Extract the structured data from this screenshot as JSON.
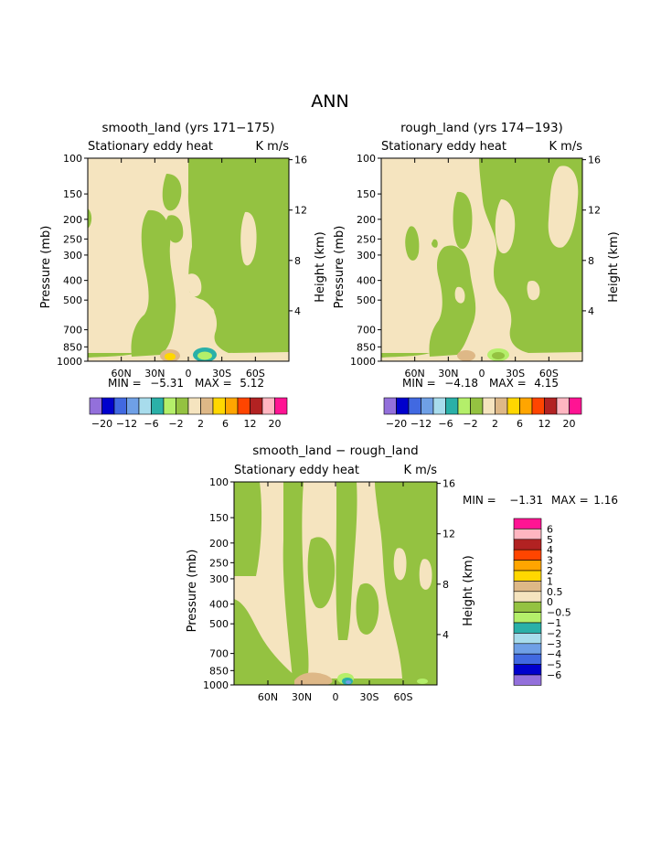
{
  "page_title": "ANN",
  "colors": {
    "purple": "#9370db",
    "darkblue": "#0000cd",
    "blue": "#4169e1",
    "lightblue": "#6fa0e6",
    "paleblue": "#a8dcec",
    "teal": "#2ab0a8",
    "lightgreen": "#b4ef6a",
    "green": "#94c241",
    "cream": "#f5e4bf",
    "tan": "#deb887",
    "yellow": "#ffd700",
    "orange": "#ffa500",
    "redorange": "#ff4500",
    "darkred": "#b22222",
    "pink": "#ffb6c1",
    "magenta": "#ff1493"
  },
  "chart_data": [
    {
      "type": "contour",
      "title": "smooth_land (yrs 171−175)",
      "subtitle": "Stationary eddy heat",
      "units": "K m/s",
      "ylabel": "Pressure (mb)",
      "ylabel_right": "Height (km)",
      "y_ticks": [
        "100",
        "150",
        "200",
        "250",
        "300",
        "400",
        "500",
        "700",
        "850",
        "1000"
      ],
      "y_right_ticks": [
        "16",
        "12",
        "8",
        "4"
      ],
      "x_ticks": [
        "60N",
        "30N",
        "0",
        "30S",
        "60S"
      ],
      "min_label": "MIN =",
      "min_value": "−5.31",
      "max_label": "MAX =",
      "max_value": "5.12",
      "colorbar_labels": [
        "−20",
        "−12",
        "−6",
        "−2",
        "2",
        "6",
        "12",
        "20"
      ]
    },
    {
      "type": "contour",
      "title": "rough_land (yrs 174−193)",
      "subtitle": "Stationary eddy heat",
      "units": "K m/s",
      "ylabel": "Pressure (mb)",
      "ylabel_right": "Height (km)",
      "y_ticks": [
        "100",
        "150",
        "200",
        "250",
        "300",
        "400",
        "500",
        "700",
        "850",
        "1000"
      ],
      "y_right_ticks": [
        "16",
        "12",
        "8",
        "4"
      ],
      "x_ticks": [
        "60N",
        "30N",
        "0",
        "30S",
        "60S"
      ],
      "min_label": "MIN =",
      "min_value": "−4.18",
      "max_label": "MAX =",
      "max_value": "4.15",
      "colorbar_labels": [
        "−20",
        "−12",
        "−6",
        "−2",
        "2",
        "6",
        "12",
        "20"
      ]
    },
    {
      "type": "contour",
      "title": "smooth_land − rough_land",
      "subtitle": "Stationary eddy heat",
      "units": "K m/s",
      "ylabel": "Pressure (mb)",
      "ylabel_right": "Height (km)",
      "y_ticks": [
        "100",
        "150",
        "200",
        "250",
        "300",
        "400",
        "500",
        "700",
        "850",
        "1000"
      ],
      "y_right_ticks": [
        "16",
        "12",
        "8",
        "4"
      ],
      "x_ticks": [
        "60N",
        "30N",
        "0",
        "30S",
        "60S"
      ],
      "min_label": "MIN =",
      "min_value": "−1.31",
      "max_label": "MAX =",
      "max_value": "1.16",
      "colorbar_labels": [
        "6",
        "5",
        "4",
        "3",
        "2",
        "1",
        "0.5",
        "0",
        "−0.5",
        "−1",
        "−2",
        "−3",
        "−4",
        "−5",
        "−6"
      ]
    }
  ]
}
